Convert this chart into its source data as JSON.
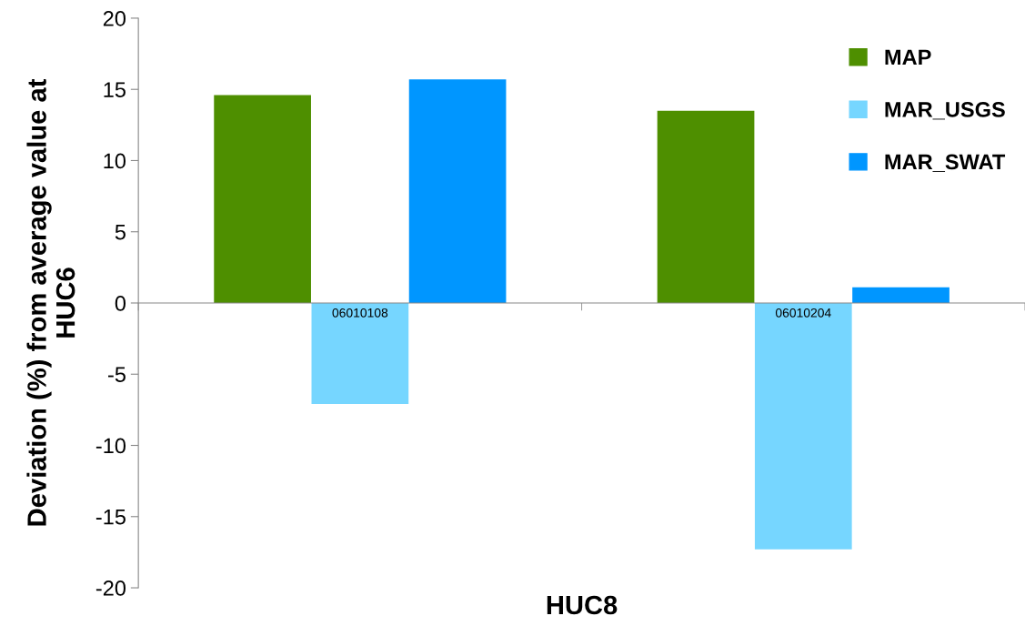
{
  "chart_data": {
    "type": "bar",
    "xlabel": "HUC8",
    "ylabel": "Deviation (%) from average value at\nHUC6",
    "categories": [
      "06010108",
      "06010204"
    ],
    "series": [
      {
        "name": "MAP",
        "color": "#4e8f00",
        "values": [
          14.6,
          13.5
        ]
      },
      {
        "name": "MAR_USGS",
        "color": "#76d6ff",
        "values": [
          -7.1,
          -17.3
        ]
      },
      {
        "name": "MAR_SWAT",
        "color": "#0096ff",
        "values": [
          15.7,
          1.1
        ]
      }
    ],
    "ylim": [
      -20,
      20
    ],
    "yticks": [
      -20,
      -15,
      -10,
      -5,
      0,
      5,
      10,
      15,
      20
    ],
    "grid": false,
    "legend": "top right"
  }
}
